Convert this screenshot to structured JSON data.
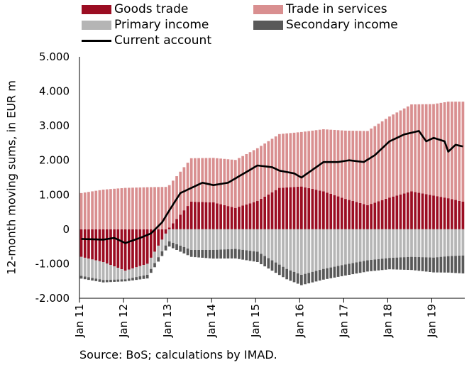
{
  "chart_data": {
    "type": "bar",
    "ylabel": "12-month moving sums, in EUR m",
    "source": "Source: BoS; calculations by IMAD.",
    "ylim": [
      -2000,
      5000
    ],
    "y_ticks": [
      "5.000",
      "4.000",
      "3.000",
      "2.000",
      "1.000",
      "0",
      "-1.000",
      "-2.000"
    ],
    "y_tick_values": [
      5000,
      4000,
      3000,
      2000,
      1000,
      0,
      -1000,
      -2000
    ],
    "x_ticks": [
      "Jan 11",
      "Jan 12",
      "Jan 13",
      "Jan 14",
      "Jan 15",
      "Jan 16",
      "Jan 17",
      "Jan 18",
      "Jan 19"
    ],
    "x_tick_months": [
      0,
      12,
      24,
      36,
      48,
      60,
      72,
      84,
      96
    ],
    "months": 105,
    "stacking": "positive and negative components stacked separately from zero",
    "series": [
      {
        "name": "Goods trade",
        "color": "#9b0d22",
        "kind": "bar",
        "keypoints": [
          [
            0,
            -800
          ],
          [
            6,
            -950
          ],
          [
            12,
            -1200
          ],
          [
            18,
            -1000
          ],
          [
            22,
            -300
          ],
          [
            24,
            50
          ],
          [
            26,
            300
          ],
          [
            30,
            800
          ],
          [
            36,
            780
          ],
          [
            42,
            620
          ],
          [
            48,
            820
          ],
          [
            54,
            1200
          ],
          [
            60,
            1240
          ],
          [
            66,
            1100
          ],
          [
            72,
            880
          ],
          [
            78,
            700
          ],
          [
            84,
            920
          ],
          [
            90,
            1100
          ],
          [
            96,
            980
          ],
          [
            100,
            900
          ],
          [
            104,
            800
          ]
        ]
      },
      {
        "name": "Trade in services",
        "color": "#d98f90",
        "kind": "bar",
        "keypoints": [
          [
            0,
            1050
          ],
          [
            6,
            1150
          ],
          [
            12,
            1200
          ],
          [
            18,
            1220
          ],
          [
            24,
            1230
          ],
          [
            30,
            1260
          ],
          [
            36,
            1290
          ],
          [
            42,
            1390
          ],
          [
            48,
            1530
          ],
          [
            54,
            1560
          ],
          [
            60,
            1580
          ],
          [
            66,
            1800
          ],
          [
            72,
            1980
          ],
          [
            78,
            2150
          ],
          [
            84,
            2350
          ],
          [
            90,
            2520
          ],
          [
            96,
            2650
          ],
          [
            100,
            2800
          ],
          [
            104,
            2900
          ]
        ]
      },
      {
        "name": "Primary income",
        "color": "#b5b5b5",
        "kind": "bar",
        "keypoints": [
          [
            0,
            -550
          ],
          [
            6,
            -520
          ],
          [
            12,
            -250
          ],
          [
            18,
            -320
          ],
          [
            24,
            -350
          ],
          [
            30,
            -600
          ],
          [
            36,
            -600
          ],
          [
            42,
            -570
          ],
          [
            48,
            -650
          ],
          [
            52,
            -900
          ],
          [
            56,
            -1150
          ],
          [
            60,
            -1320
          ],
          [
            66,
            -1150
          ],
          [
            72,
            -1020
          ],
          [
            78,
            -900
          ],
          [
            84,
            -830
          ],
          [
            90,
            -800
          ],
          [
            96,
            -820
          ],
          [
            100,
            -780
          ],
          [
            104,
            -760
          ]
        ]
      },
      {
        "name": "Secondary income",
        "color": "#595959",
        "kind": "bar",
        "keypoints": [
          [
            0,
            -80
          ],
          [
            12,
            -60
          ],
          [
            24,
            -150
          ],
          [
            36,
            -250
          ],
          [
            48,
            -300
          ],
          [
            60,
            -300
          ],
          [
            72,
            -320
          ],
          [
            84,
            -330
          ],
          [
            96,
            -430
          ],
          [
            104,
            -520
          ]
        ]
      },
      {
        "name": "Current account",
        "color": "#000000",
        "kind": "line",
        "keypoints": [
          [
            0,
            -280
          ],
          [
            6,
            -300
          ],
          [
            9,
            -250
          ],
          [
            12,
            -400
          ],
          [
            16,
            -250
          ],
          [
            19,
            -120
          ],
          [
            22,
            200
          ],
          [
            24,
            550
          ],
          [
            27,
            1050
          ],
          [
            30,
            1200
          ],
          [
            33,
            1350
          ],
          [
            36,
            1280
          ],
          [
            40,
            1350
          ],
          [
            44,
            1600
          ],
          [
            48,
            1850
          ],
          [
            52,
            1800
          ],
          [
            54,
            1700
          ],
          [
            58,
            1620
          ],
          [
            60,
            1500
          ],
          [
            64,
            1800
          ],
          [
            66,
            1950
          ],
          [
            70,
            1950
          ],
          [
            73,
            2000
          ],
          [
            77,
            1950
          ],
          [
            80,
            2150
          ],
          [
            84,
            2550
          ],
          [
            88,
            2750
          ],
          [
            92,
            2850
          ],
          [
            94,
            2550
          ],
          [
            96,
            2650
          ],
          [
            99,
            2550
          ],
          [
            100,
            2250
          ],
          [
            102,
            2450
          ],
          [
            104,
            2400
          ]
        ]
      }
    ]
  }
}
